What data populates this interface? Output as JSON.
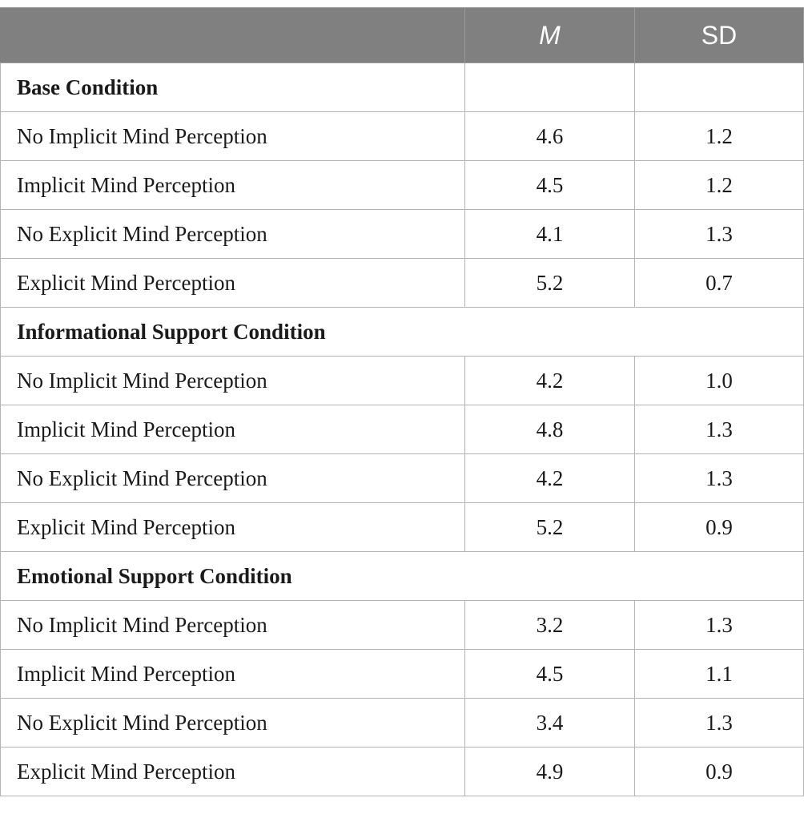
{
  "table": {
    "headers": [
      "",
      "M",
      "SD"
    ],
    "rows": [
      {
        "type": "section",
        "label": "Base Condition",
        "m": "",
        "sd": "",
        "span": false
      },
      {
        "type": "data",
        "label": "No Implicit Mind Perception",
        "m": "4.6",
        "sd": "1.2"
      },
      {
        "type": "data",
        "label": "Implicit Mind Perception",
        "m": "4.5",
        "sd": "1.2"
      },
      {
        "type": "data",
        "label": "No Explicit Mind Perception",
        "m": "4.1",
        "sd": "1.3"
      },
      {
        "type": "data",
        "label": "Explicit Mind Perception",
        "m": "5.2",
        "sd": "0.7"
      },
      {
        "type": "section",
        "label": "Informational Support Condition",
        "span": true
      },
      {
        "type": "data",
        "label": "No Implicit Mind Perception",
        "m": "4.2",
        "sd": "1.0"
      },
      {
        "type": "data",
        "label": "Implicit Mind Perception",
        "m": "4.8",
        "sd": "1.3"
      },
      {
        "type": "data",
        "label": "No Explicit Mind Perception",
        "m": "4.2",
        "sd": "1.3"
      },
      {
        "type": "data",
        "label": "Explicit Mind Perception",
        "m": "5.2",
        "sd": "0.9"
      },
      {
        "type": "section",
        "label": "Emotional Support Condition",
        "span": true
      },
      {
        "type": "data",
        "label": "No Implicit Mind Perception",
        "m": "3.2",
        "sd": "1.3"
      },
      {
        "type": "data",
        "label": "Implicit Mind Perception",
        "m": "4.5",
        "sd": "1.1"
      },
      {
        "type": "data",
        "label": "No Explicit Mind Perception",
        "m": "3.4",
        "sd": "1.3"
      },
      {
        "type": "data",
        "label": "Explicit Mind Perception",
        "m": "4.9",
        "sd": "0.9"
      }
    ]
  },
  "colors": {
    "header_bg": "#808080",
    "header_text": "#ffffff",
    "grid": "#b3b3b3",
    "text": "#1a1a1a"
  }
}
